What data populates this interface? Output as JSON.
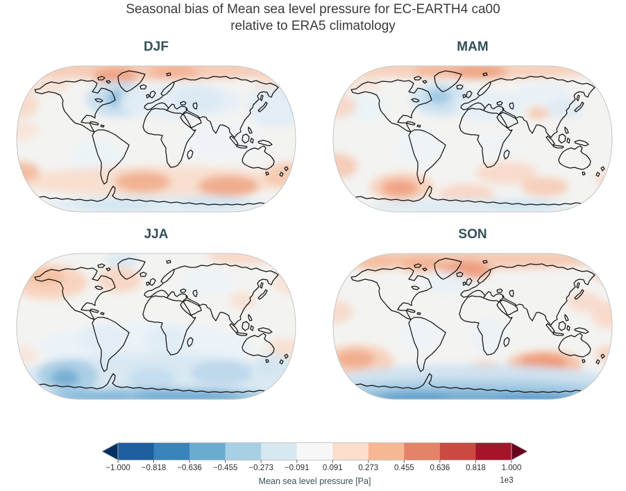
{
  "figure": {
    "title_line1": "Seasonal bias of Mean sea level pressure for EC-EARTH4 ca00",
    "title_line2": "relative to ERA5 climatology"
  },
  "colors": {
    "title_text": "#3a3a3a",
    "season_title_text": "#33505a",
    "colorbar_label_text": "#3a4f55",
    "tick_text": "#2d2d2d",
    "map_background": "#f3f3f1",
    "map_border": "#c4c4c4",
    "coastline": "#111111"
  },
  "colorbar": {
    "label": "Mean sea level pressure [Pa]",
    "offset_label": "1e3",
    "ticks": [
      "−1.000",
      "−0.818",
      "−0.636",
      "−0.455",
      "−0.273",
      "−0.091",
      "0.091",
      "0.273",
      "0.455",
      "0.636",
      "0.818",
      "1.000"
    ],
    "segment_colors": [
      "#1d5fa0",
      "#3884ba",
      "#6aacd0",
      "#a7d0e4",
      "#d7e8f1",
      "#f7f7f7",
      "#fcdecd",
      "#f7b793",
      "#e58368",
      "#ca4a42",
      "#a61429"
    ],
    "under_arrow_color": "#053061",
    "over_arrow_color": "#67001f",
    "outline_color": "#b8b8b8"
  },
  "chart_data": {
    "type": "heatmap",
    "subtype": "filled-contour world maps, Robinson projection, 2x2 grid of seasons",
    "title": "Seasonal bias of Mean sea level pressure for EC-EARTH4 ca00 relative to ERA5 climatology",
    "variable": "Mean sea level pressure bias",
    "units": "Pa",
    "scale_note": "tick values multiplied by 1e3",
    "seasons": [
      "DJF",
      "MAM",
      "JJA",
      "SON"
    ],
    "levels_pa": [
      -1000,
      -818,
      -636,
      -455,
      -273,
      -91,
      91,
      273,
      455,
      636,
      818,
      1000
    ],
    "colormap": "RdBu_r discrete, extended with arrows both ends",
    "legend_position": "bottom horizontal colorbar",
    "features": {
      "DJF": [
        {
          "region": "Arctic (Greenland–Barents sector)",
          "sign": "positive",
          "approx_pa": 400
        },
        {
          "region": "North Atlantic south of Greenland",
          "sign": "negative",
          "approx_pa": -500
        },
        {
          "region": "Northern Eurasia / North Pacific",
          "sign": "negative",
          "approx_pa": -150
        },
        {
          "region": "Southern mid-latitudes (S Atlantic, S Indian, S Pacific)",
          "sign": "positive",
          "approx_pa": 350
        },
        {
          "region": "Antarctic coast",
          "sign": "negative",
          "approx_pa": -150
        }
      ],
      "MAM": [
        {
          "region": "Arctic (Barents–Scandinavia)",
          "sign": "positive",
          "approx_pa": 400
        },
        {
          "region": "North Atlantic south of Greenland",
          "sign": "negative",
          "approx_pa": -400
        },
        {
          "region": "Southeast Pacific mid-latitudes",
          "sign": "positive",
          "approx_pa": 450
        },
        {
          "region": "Southern Ocean patches",
          "sign": "positive",
          "approx_pa": 200
        },
        {
          "region": "Antarctic coast",
          "sign": "negative",
          "approx_pa": -150
        }
      ],
      "JJA": [
        {
          "region": "North Pacific / Alaska",
          "sign": "positive",
          "approx_pa": 250
        },
        {
          "region": "Eastern Canada",
          "sign": "positive",
          "approx_pa": 200
        },
        {
          "region": "Southern Ocean broad band",
          "sign": "negative",
          "approx_pa": -250
        },
        {
          "region": "Southeast Pacific core",
          "sign": "negative",
          "approx_pa": -550
        },
        {
          "region": "Antarctica",
          "sign": "negative",
          "approx_pa": -500
        }
      ],
      "SON": [
        {
          "region": "Arctic (Greenland–Iceland–Scandinavia)",
          "sign": "positive",
          "approx_pa": 500
        },
        {
          "region": "Southern mid-latitudes (SE Pacific, south of Australia)",
          "sign": "positive",
          "approx_pa": 450
        },
        {
          "region": "Circumpolar Southern Ocean / Antarctic coast",
          "sign": "negative",
          "approx_pa": -700
        }
      ]
    }
  },
  "panels": [
    {
      "id": "djf",
      "label": "DJF",
      "blobs": [
        [
          205,
          10,
          190,
          15,
          "#f6c9b2",
          0.9
        ],
        [
          146,
          18,
          32,
          12,
          "#ef9f7c",
          0.85
        ],
        [
          230,
          12,
          36,
          10,
          "#f2ad8c",
          0.8
        ],
        [
          40,
          30,
          40,
          13,
          "#f8d5c2",
          0.6
        ],
        [
          388,
          30,
          40,
          16,
          "#f8d5c2",
          0.7
        ],
        [
          150,
          52,
          46,
          26,
          "#c9dfef",
          0.95
        ],
        [
          152,
          51,
          20,
          12,
          "#8cbedd",
          0.9
        ],
        [
          152,
          51,
          10,
          6,
          "#74add1",
          0.9
        ],
        [
          240,
          55,
          90,
          26,
          "#e4eef6",
          0.9
        ],
        [
          265,
          52,
          35,
          17,
          "#d7e7f2",
          0.8
        ],
        [
          378,
          62,
          42,
          30,
          "#e0ecf5",
          0.9
        ],
        [
          10,
          60,
          26,
          18,
          "#f8d6c3",
          0.8
        ],
        [
          12,
          96,
          24,
          15,
          "#fae0d0",
          0.7
        ],
        [
          120,
          135,
          38,
          26,
          "#eaf2f8",
          0.8
        ],
        [
          300,
          112,
          55,
          26,
          "#eef4f9",
          0.7
        ],
        [
          205,
          170,
          198,
          22,
          "#f9dcca",
          0.85
        ],
        [
          186,
          171,
          40,
          15,
          "#f1ae8c",
          0.9
        ],
        [
          309,
          177,
          44,
          15,
          "#f0a987",
          0.9
        ],
        [
          9,
          157,
          28,
          15,
          "#f3b696",
          0.85
        ],
        [
          396,
          161,
          36,
          18,
          "#f6c4a9",
          0.8
        ],
        [
          205,
          203,
          158,
          12,
          "#dcebf4",
          0.9
        ],
        [
          150,
          205,
          58,
          9,
          "#cfe3f1",
          0.8
        ],
        [
          290,
          200,
          48,
          9,
          "#cfe3f1",
          0.7
        ]
      ]
    },
    {
      "id": "mam",
      "label": "MAM",
      "blobs": [
        [
          205,
          9,
          190,
          14,
          "#f7cdb7",
          0.9
        ],
        [
          213,
          12,
          42,
          11,
          "#ef9f7c",
          0.85
        ],
        [
          150,
          10,
          30,
          9,
          "#f3b294",
          0.8
        ],
        [
          40,
          28,
          34,
          12,
          "#f9d9c8",
          0.6
        ],
        [
          160,
          52,
          44,
          24,
          "#cfe3f1",
          0.95
        ],
        [
          156,
          48,
          18,
          11,
          "#9cc7e2",
          0.9
        ],
        [
          50,
          65,
          30,
          19,
          "#e9f2f8",
          0.8
        ],
        [
          13,
          62,
          24,
          16,
          "#f8d2bf",
          0.8
        ],
        [
          230,
          62,
          50,
          22,
          "#e4eff6",
          0.9
        ],
        [
          306,
          44,
          40,
          17,
          "#e7f0f7",
          0.8
        ],
        [
          338,
          66,
          25,
          14,
          "#dbe9f3",
          0.8
        ],
        [
          299,
          72,
          16,
          8,
          "#f6c3a6",
          0.85
        ],
        [
          128,
          120,
          34,
          24,
          "#edf4f9",
          0.7
        ],
        [
          240,
          120,
          28,
          20,
          "#eef4f9",
          0.6
        ],
        [
          9,
          148,
          30,
          18,
          "#f6c7ae",
          0.85
        ],
        [
          103,
          178,
          46,
          20,
          "#f8cdb6",
          0.9
        ],
        [
          100,
          180,
          26,
          12,
          "#efa07e",
          0.9
        ],
        [
          196,
          188,
          40,
          14,
          "#f8d2c0",
          0.85
        ],
        [
          254,
          158,
          44,
          16,
          "#f9d4c2",
          0.8
        ],
        [
          309,
          178,
          34,
          14,
          "#f6c7ae",
          0.8
        ],
        [
          402,
          168,
          20,
          12,
          "#f8d0bc",
          0.7
        ],
        [
          205,
          206,
          148,
          11,
          "#dcebf4",
          0.9
        ],
        [
          275,
          204,
          50,
          9,
          "#cfe3f1",
          0.8
        ],
        [
          398,
          203,
          18,
          8,
          "#f8d2c0",
          0.7
        ]
      ]
    },
    {
      "id": "jja",
      "label": "JJA",
      "blobs": [
        [
          50,
          45,
          56,
          25,
          "#f8d0ba",
          0.9
        ],
        [
          46,
          38,
          28,
          13,
          "#f5c0a1",
          0.85
        ],
        [
          152,
          42,
          32,
          18,
          "#f8d0ba",
          0.8
        ],
        [
          330,
          8,
          50,
          12,
          "#f8d3bf",
          0.8
        ],
        [
          398,
          45,
          25,
          19,
          "#fae0d2",
          0.8
        ],
        [
          156,
          14,
          23,
          10,
          "#d5e7f2",
          0.9
        ],
        [
          279,
          45,
          40,
          17,
          "#ecf3f8",
          0.8
        ],
        [
          330,
          72,
          19,
          12,
          "#f9d8c7",
          0.7
        ],
        [
          190,
          140,
          155,
          36,
          "#eaf2f8",
          0.9
        ],
        [
          129,
          126,
          34,
          21,
          "#e0ecf5",
          0.85
        ],
        [
          220,
          130,
          30,
          24,
          "#dfecf5",
          0.85
        ],
        [
          200,
          183,
          195,
          35,
          "#d8e8f2",
          0.95
        ],
        [
          78,
          180,
          44,
          24,
          "#a6cce4",
          0.9
        ],
        [
          74,
          183,
          20,
          12,
          "#74add1",
          0.95
        ],
        [
          199,
          184,
          34,
          16,
          "#c0daed",
          0.85
        ],
        [
          299,
          176,
          44,
          18,
          "#b8d5ea",
          0.85
        ],
        [
          376,
          162,
          28,
          16,
          "#cfe3f1",
          0.8
        ],
        [
          210,
          210,
          162,
          12,
          "#8fc0de",
          0.95
        ],
        [
          250,
          210,
          78,
          9,
          "#74add1",
          0.9
        ],
        [
          120,
          211,
          48,
          8,
          "#81b6d9",
          0.85
        ],
        [
          12,
          150,
          22,
          13,
          "#fae0d2",
          0.7
        ],
        [
          392,
          140,
          26,
          13,
          "#f9d8c7",
          0.75
        ]
      ]
    },
    {
      "id": "son",
      "label": "SON",
      "blobs": [
        [
          205,
          12,
          192,
          15,
          "#f6c8b0",
          0.95
        ],
        [
          196,
          28,
          36,
          13,
          "#ec9776",
          0.9
        ],
        [
          132,
          20,
          34,
          11,
          "#f2b08f",
          0.85
        ],
        [
          66,
          17,
          38,
          11,
          "#f5bd9f",
          0.85
        ],
        [
          402,
          34,
          24,
          13,
          "#f8d0ba",
          0.8
        ],
        [
          169,
          47,
          34,
          17,
          "#e7f0f7",
          0.85
        ],
        [
          402,
          92,
          26,
          20,
          "#f9d6c5",
          0.85
        ],
        [
          366,
          74,
          25,
          14,
          "#f9d6c5",
          0.8
        ],
        [
          8,
          88,
          24,
          17,
          "#f9d6c5",
          0.8
        ],
        [
          130,
          120,
          30,
          24,
          "#edf4f9",
          0.7
        ],
        [
          228,
          122,
          26,
          26,
          "#e9f1f8",
          0.7
        ],
        [
          39,
          160,
          52,
          25,
          "#f8cdb7",
          0.9
        ],
        [
          36,
          156,
          28,
          13,
          "#f1ab89",
          0.9
        ],
        [
          222,
          170,
          24,
          11,
          "#f7c7ad",
          0.85
        ],
        [
          309,
          163,
          54,
          19,
          "#f5bd9e",
          0.9
        ],
        [
          307,
          161,
          34,
          12,
          "#ec9776",
          0.9
        ],
        [
          400,
          149,
          19,
          12,
          "#f8d0ba",
          0.8
        ],
        [
          205,
          186,
          200,
          22,
          "#cfe2f0",
          0.95
        ],
        [
          205,
          200,
          188,
          15,
          "#a9cee5",
          0.95
        ],
        [
          210,
          212,
          172,
          11,
          "#74add1",
          0.95
        ],
        [
          120,
          210,
          50,
          8,
          "#5f9ecb",
          0.9
        ],
        [
          300,
          214,
          60,
          8,
          "#5f9ecb",
          0.9
        ]
      ]
    }
  ]
}
